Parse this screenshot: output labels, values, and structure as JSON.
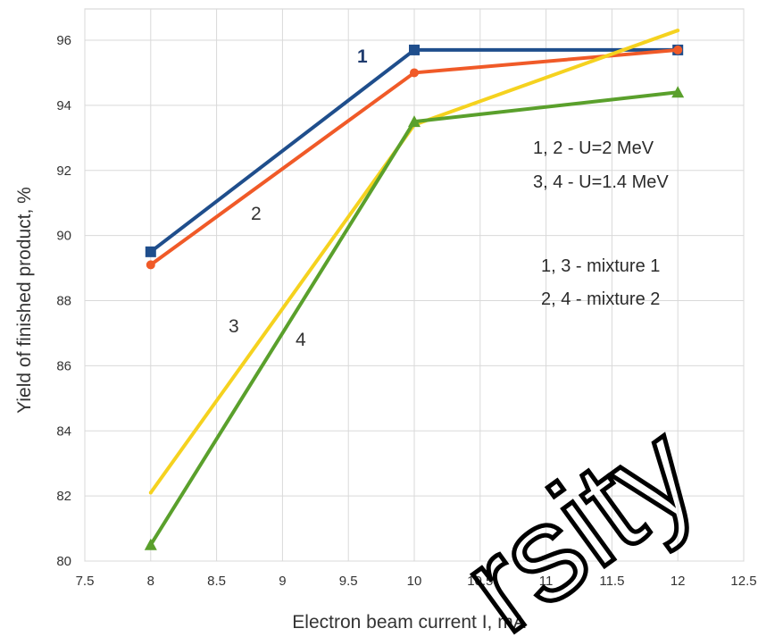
{
  "chart_data": {
    "type": "line",
    "xlabel": "Electron beam current I, mA",
    "ylabel": "Yield of finished product, %",
    "xlim": [
      7.5,
      12.5
    ],
    "ylim": [
      80,
      97
    ],
    "x_ticks": [
      "7.5",
      "8",
      "8.5",
      "9",
      "9.5",
      "10",
      "10.5",
      "11",
      "11.5",
      "12",
      "12.5"
    ],
    "y_ticks": [
      "80",
      "82",
      "84",
      "86",
      "88",
      "90",
      "92",
      "94",
      "96"
    ],
    "grid": true,
    "legend": "none",
    "series": [
      {
        "name": "1",
        "color": "#1f4e8c",
        "marker": "square",
        "x": [
          8,
          10,
          12
        ],
        "y": [
          89.5,
          95.7,
          95.7
        ]
      },
      {
        "name": "2",
        "color": "#f05a28",
        "marker": "circle",
        "x": [
          8,
          10,
          12
        ],
        "y": [
          89.1,
          95.0,
          95.7
        ]
      },
      {
        "name": "3",
        "color": "#f5d21f",
        "marker": "none",
        "x": [
          8,
          10,
          12
        ],
        "y": [
          82.1,
          93.4,
          96.3
        ]
      },
      {
        "name": "4",
        "color": "#5aa02c",
        "marker": "triangle",
        "x": [
          8,
          10,
          12
        ],
        "y": [
          80.5,
          93.5,
          94.4
        ]
      }
    ],
    "annotations": [
      "1, 2 - U=2 MeV",
      "3, 4 - U=1.4 MeV",
      "1, 3 - mixture 1",
      "2, 4 - mixture 2"
    ]
  },
  "watermark": "rsity"
}
